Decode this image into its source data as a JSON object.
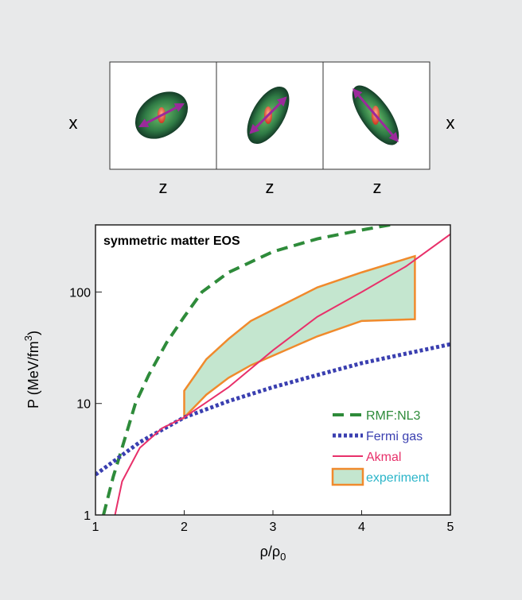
{
  "panels": {
    "left_axis": "x",
    "right_axis": "x",
    "bottom_axes": [
      "z",
      "z",
      "z"
    ]
  },
  "chart_data": {
    "type": "line",
    "title": "symmetric matter EOS",
    "x_label": "ρ/ρ",
    "x_label_sub": "0",
    "y_label": "P (MeV/fm",
    "y_label_sup": "3",
    "y_label_end": ")",
    "xlim": [
      1,
      5
    ],
    "xticks": [
      1,
      2,
      3,
      4,
      5
    ],
    "ylim": [
      1,
      400
    ],
    "yticks": [
      1,
      10,
      100
    ],
    "y_scale": "log",
    "legend": "lower right",
    "series": [
      {
        "name": "RMF:NL3",
        "color": "#2e8b3a",
        "style": "dashed",
        "x": [
          1.09,
          1.2,
          1.3,
          1.45,
          1.6,
          1.8,
          2,
          2.2,
          2.5,
          3,
          3.5,
          4,
          4.32
        ],
        "values": [
          1,
          2.2,
          4,
          10,
          18,
          35,
          60,
          100,
          150,
          230,
          300,
          360,
          400
        ]
      },
      {
        "name": "Fermi gas",
        "color": "#3a3fb0",
        "style": "dotted",
        "x": [
          1,
          1.5,
          2,
          2.5,
          3,
          3.5,
          4,
          4.5,
          5
        ],
        "values": [
          2.3,
          4.5,
          7.5,
          10.5,
          14,
          18,
          23,
          28,
          34
        ]
      },
      {
        "name": "Akmal",
        "color": "#e8306a",
        "style": "solid",
        "x": [
          1.22,
          1.3,
          1.5,
          1.75,
          2,
          2.5,
          3,
          3.5,
          4,
          4.5,
          5
        ],
        "values": [
          1,
          2,
          4,
          6,
          7.5,
          14,
          30,
          60,
          100,
          170,
          330
        ]
      }
    ],
    "band": {
      "name": "experiment",
      "color": "#f08a2c",
      "fill": "#c4e6cf",
      "text_color": "#2bb5c9",
      "x": [
        2,
        2.25,
        2.5,
        2.75,
        3.5,
        4,
        4.6
      ],
      "upper": [
        13,
        25,
        38,
        55,
        110,
        150,
        210
      ],
      "lower": [
        7.5,
        12,
        17,
        22,
        40,
        55,
        57
      ]
    }
  }
}
